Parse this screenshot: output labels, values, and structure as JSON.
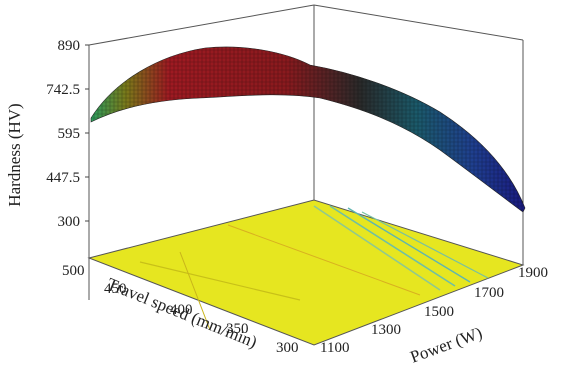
{
  "chart_data": {
    "type": "surface",
    "zlabel": "Hardness (HV)",
    "xlabel": "Travel speed (mm/min)",
    "ylabel": "Power (W)",
    "zticks": [
      "890",
      "742.5",
      "595",
      "447.5",
      "300"
    ],
    "zlim": [
      300,
      890
    ],
    "xticks": [
      "500",
      "450",
      "400",
      "350",
      "300"
    ],
    "xlim": [
      300,
      500
    ],
    "yticks": [
      "1100",
      "1300",
      "1500",
      "1700",
      "1900"
    ],
    "ylim": [
      1100,
      1900
    ],
    "surface_samples": [
      {
        "travel_speed": 500,
        "power": 1100,
        "hardness": 600
      },
      {
        "travel_speed": 450,
        "power": 1100,
        "hardness": 790
      },
      {
        "travel_speed": 400,
        "power": 1100,
        "hardness": 850
      },
      {
        "travel_speed": 350,
        "power": 1100,
        "hardness": 830
      },
      {
        "travel_speed": 300,
        "power": 1100,
        "hardness": 760
      },
      {
        "travel_speed": 300,
        "power": 1300,
        "hardness": 740
      },
      {
        "travel_speed": 300,
        "power": 1500,
        "hardness": 660
      },
      {
        "travel_speed": 300,
        "power": 1700,
        "hardness": 530
      },
      {
        "travel_speed": 300,
        "power": 1900,
        "hardness": 385
      }
    ],
    "colormap": [
      "#1d1d8f",
      "#2aa06a",
      "#222222",
      "#a0131c"
    ],
    "floor_contour_color": "#e0e01f",
    "grid": false
  }
}
